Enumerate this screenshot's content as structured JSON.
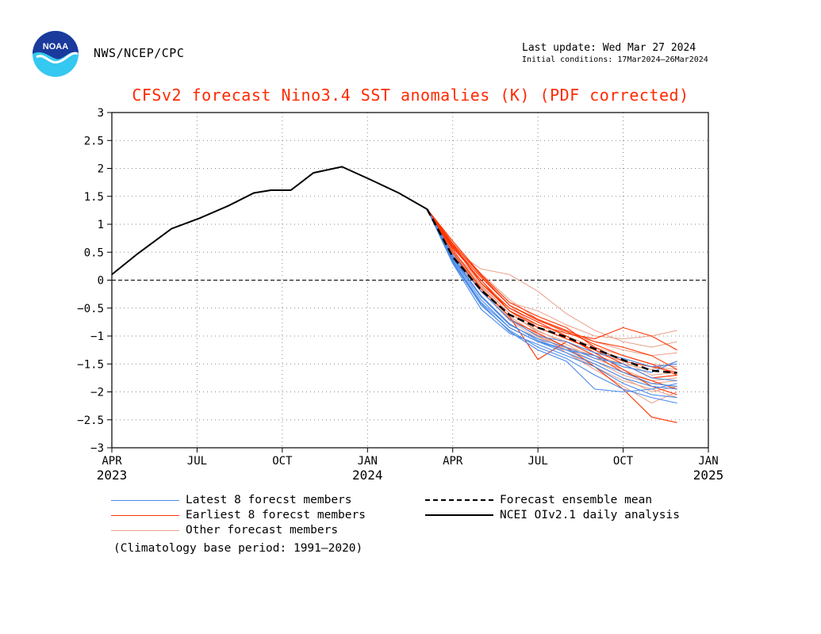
{
  "header": {
    "agency": "NWS/NCEP/CPC",
    "logo_text": "NOAA",
    "last_update": "Last update: Wed Mar 27 2024",
    "initial_conditions": "Initial conditions: 17Mar2024–26Mar2024"
  },
  "colors": {
    "title": "#ff2a00",
    "latest_members": "#4a8ae8",
    "earliest_members": "#ff3300",
    "other_members": "#e8a08a",
    "ensemble_mean": "#000000",
    "observed": "#000000",
    "logo_top": "#1a3a9c",
    "logo_bottom": "#35c8f0"
  },
  "chart_data": {
    "type": "line",
    "title": "CFSv2 forecast Nino3.4 SST anomalies (K) (PDF corrected)",
    "xlabel": "",
    "ylabel": "",
    "ylim": [
      -3,
      3
    ],
    "xlim": [
      0,
      21
    ],
    "x_axis_note": "x values are months since APR 2023",
    "y_ticks": [
      "3",
      "2.5",
      "2",
      "1.5",
      "1",
      "0.5",
      "0",
      "−0.5",
      "−1",
      "−1.5",
      "−2",
      "−2.5",
      "−3"
    ],
    "x_ticks": [
      {
        "x": 0,
        "label": "APR",
        "year": "2023"
      },
      {
        "x": 3,
        "label": "JUL",
        "year": ""
      },
      {
        "x": 6,
        "label": "OCT",
        "year": ""
      },
      {
        "x": 9,
        "label": "JAN",
        "year": "2024"
      },
      {
        "x": 12,
        "label": "APR",
        "year": ""
      },
      {
        "x": 15,
        "label": "JUL",
        "year": ""
      },
      {
        "x": 18,
        "label": "OCT",
        "year": ""
      },
      {
        "x": 21,
        "label": "JAN",
        "year": "2025"
      }
    ],
    "grid": true,
    "zero_line": "dashed",
    "observed": {
      "name": "NCEI OIv2.1 daily analysis",
      "x": [
        0,
        0.9,
        2.1,
        3.1,
        4.1,
        5.0,
        5.6,
        6.3,
        7.1,
        8.1,
        9.1,
        10.1,
        11.1
      ],
      "y": [
        0.1,
        0.47,
        0.92,
        1.11,
        1.33,
        1.56,
        1.61,
        1.61,
        1.92,
        2.03,
        1.8,
        1.56,
        1.27
      ]
    },
    "ensemble_mean": {
      "name": "Forecast ensemble mean",
      "x": [
        11.1,
        12,
        13,
        14,
        15,
        16,
        17,
        18,
        19,
        19.9
      ],
      "y": [
        1.27,
        0.42,
        -0.18,
        -0.62,
        -0.85,
        -1.02,
        -1.23,
        -1.43,
        -1.62,
        -1.66
      ]
    },
    "member_x": [
      11.1,
      12,
      13,
      14,
      15,
      16,
      17,
      18,
      19,
      19.9
    ],
    "latest_members": {
      "name": "Latest 8 forecst members",
      "series": [
        [
          1.27,
          0.3,
          -0.52,
          -0.95,
          -1.15,
          -1.35,
          -1.55,
          -1.85,
          -2.05,
          -2.1
        ],
        [
          1.27,
          0.35,
          -0.4,
          -0.85,
          -1.1,
          -1.25,
          -1.45,
          -1.65,
          -1.85,
          -1.9
        ],
        [
          1.27,
          0.4,
          -0.3,
          -0.8,
          -1.05,
          -1.2,
          -1.4,
          -1.5,
          -1.75,
          -1.8
        ],
        [
          1.27,
          0.32,
          -0.45,
          -0.9,
          -1.2,
          -1.4,
          -1.7,
          -1.95,
          -2.1,
          -2.2
        ],
        [
          1.27,
          0.45,
          -0.2,
          -0.7,
          -1.0,
          -1.1,
          -1.3,
          -1.4,
          -1.55,
          -1.5
        ],
        [
          1.27,
          0.38,
          -0.35,
          -0.85,
          -1.1,
          -1.3,
          -1.5,
          -1.75,
          -1.9,
          -1.95
        ],
        [
          1.27,
          0.33,
          -0.42,
          -0.92,
          -1.25,
          -1.45,
          -1.95,
          -2.0,
          -1.95,
          -1.85
        ],
        [
          1.27,
          0.42,
          -0.28,
          -0.78,
          -1.08,
          -1.25,
          -1.35,
          -1.55,
          -1.65,
          -1.45
        ]
      ]
    },
    "earliest_members": {
      "name": "Earliest 8 forecst members",
      "series": [
        [
          1.27,
          0.65,
          -0.05,
          -0.55,
          -0.8,
          -0.95,
          -1.05,
          -0.85,
          -1.0,
          -1.25
        ],
        [
          1.27,
          0.6,
          0.05,
          -0.45,
          -0.7,
          -0.9,
          -1.1,
          -1.2,
          -1.35,
          -1.6
        ],
        [
          1.27,
          0.55,
          -0.15,
          -0.65,
          -1.42,
          -1.1,
          -1.35,
          -1.65,
          -1.8,
          -1.95
        ],
        [
          1.27,
          0.7,
          0.1,
          -0.4,
          -0.65,
          -0.85,
          -1.2,
          -1.45,
          -1.55,
          -1.65
        ],
        [
          1.27,
          0.5,
          -0.2,
          -0.7,
          -0.95,
          -1.2,
          -1.55,
          -1.95,
          -2.45,
          -2.55
        ],
        [
          1.27,
          0.62,
          -0.05,
          -0.5,
          -0.75,
          -1.0,
          -1.3,
          -1.6,
          -1.9,
          -2.05
        ],
        [
          1.27,
          0.58,
          0.0,
          -0.55,
          -0.85,
          -1.05,
          -1.25,
          -1.5,
          -1.75,
          -1.7
        ],
        [
          1.27,
          0.66,
          0.08,
          -0.45,
          -0.72,
          -0.92,
          -1.15,
          -1.35,
          -1.5,
          -1.7
        ]
      ]
    },
    "other_members": {
      "name": "Other forecast members",
      "series": [
        [
          1.27,
          0.6,
          0.1,
          -0.4,
          -0.55,
          -0.8,
          -1.0,
          -1.05,
          -1.0,
          -0.9
        ],
        [
          1.27,
          0.55,
          0.2,
          0.1,
          -0.2,
          -0.6,
          -0.9,
          -1.1,
          -1.2,
          -1.1
        ],
        [
          1.27,
          0.5,
          0.0,
          -0.5,
          -0.8,
          -1.0,
          -1.2,
          -1.35,
          -1.5,
          -1.55
        ],
        [
          1.27,
          0.45,
          -0.1,
          -0.6,
          -0.9,
          -1.15,
          -1.4,
          -1.6,
          -1.8,
          -1.75
        ],
        [
          1.27,
          0.4,
          -0.2,
          -0.7,
          -1.0,
          -1.25,
          -1.5,
          -1.75,
          -2.0,
          -1.9
        ],
        [
          1.27,
          0.52,
          -0.05,
          -0.55,
          -0.95,
          -1.3,
          -1.6,
          -1.9,
          -2.2,
          -2.0
        ],
        [
          1.27,
          0.48,
          -0.12,
          -0.65,
          -0.98,
          -1.2,
          -1.35,
          -1.5,
          -1.6,
          -1.45
        ],
        [
          1.27,
          0.58,
          0.05,
          -0.45,
          -0.85,
          -1.05,
          -1.25,
          -1.4,
          -1.55,
          -1.6
        ],
        [
          1.27,
          0.43,
          -0.18,
          -0.72,
          -1.05,
          -1.3,
          -1.55,
          -1.8,
          -1.95,
          -2.1
        ],
        [
          1.27,
          0.5,
          -0.08,
          -0.6,
          -0.92,
          -1.1,
          -1.3,
          -1.45,
          -1.7,
          -1.65
        ],
        [
          1.27,
          0.62,
          0.12,
          -0.35,
          -0.7,
          -0.95,
          -1.1,
          -1.25,
          -1.35,
          -1.3
        ],
        [
          1.27,
          0.46,
          -0.15,
          -0.68,
          -1.02,
          -1.22,
          -1.45,
          -1.7,
          -1.85,
          -1.8
        ]
      ]
    }
  },
  "legend": {
    "latest": "Latest 8 forecst members",
    "earliest": "Earliest 8 forecst members",
    "other": "Other forecast members",
    "mean": "Forecast ensemble mean",
    "observed": "NCEI OIv2.1 daily analysis"
  },
  "footnote": "(Climatology base period: 1991–2020)"
}
